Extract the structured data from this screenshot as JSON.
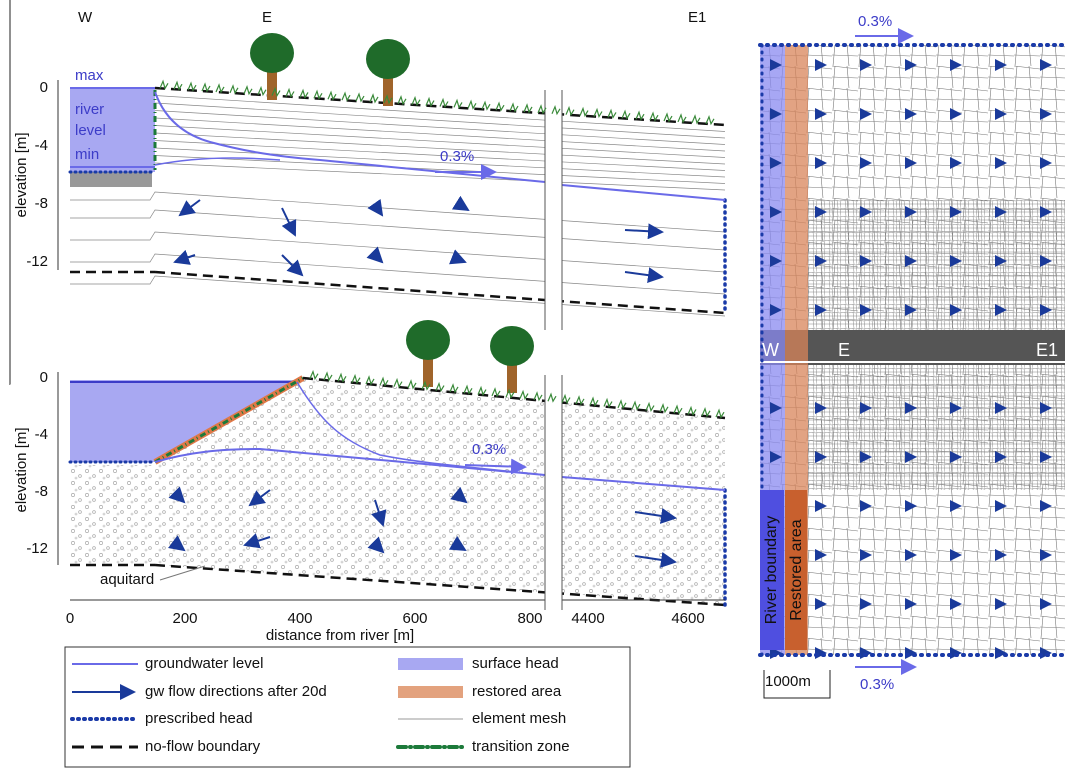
{
  "top_section": {
    "labels": {
      "west": "W",
      "east": "E",
      "east1": "E1"
    },
    "river_level": [
      "max",
      "river",
      "level",
      "min"
    ],
    "slope": "0.3%",
    "y_axis": {
      "title": "elevation [m]",
      "ticks": [
        "0",
        "-4",
        "-8",
        "-12"
      ]
    }
  },
  "bottom_section": {
    "slope": "0.3%",
    "y_axis": {
      "title": "elevation [m]",
      "ticks": [
        "0",
        "-4",
        "-8",
        "-12"
      ]
    },
    "x_axis": {
      "title": "distance from river [m]",
      "ticks": [
        "0",
        "200",
        "400",
        "600",
        "800",
        "4400",
        "4600"
      ]
    },
    "aquitard": "aquitard"
  },
  "plan_view": {
    "top_slope": "0.3%",
    "labels": {
      "west": "W",
      "east": "E",
      "east1": "E1"
    },
    "river_boundary": "River boundary",
    "restored_area": "Restored area",
    "scale": "1000m",
    "bottom_slope": "0.3%"
  },
  "legend": {
    "items": [
      {
        "label": "groundwater level"
      },
      {
        "label": "surface head"
      },
      {
        "label": "gw flow directions after 20d"
      },
      {
        "label": "restored area"
      },
      {
        "label": "prescribed head"
      },
      {
        "label": "element mesh"
      },
      {
        "label": "no-flow boundary"
      },
      {
        "label": "transition zone"
      }
    ]
  }
}
